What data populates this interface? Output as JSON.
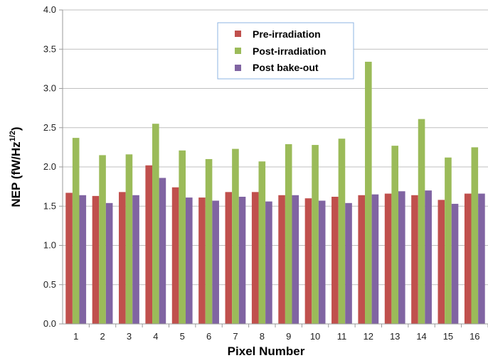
{
  "chart_data": {
    "type": "bar",
    "xlabel": "Pixel Number",
    "ylabel_main": "NEP (fW/Hz",
    "ylabel_sup": "1/2",
    "ylabel_end": ")",
    "ylim": [
      0,
      4.0
    ],
    "yticks": [
      "0.0",
      "0.5",
      "1.0",
      "1.5",
      "2.0",
      "2.5",
      "3.0",
      "3.5",
      "4.0"
    ],
    "categories": [
      "1",
      "2",
      "3",
      "4",
      "5",
      "6",
      "7",
      "8",
      "9",
      "10",
      "11",
      "12",
      "13",
      "14",
      "15",
      "16"
    ],
    "grid": "horizontal",
    "legend_position": "top-center",
    "series": [
      {
        "name": "Pre-irradiation",
        "color": "#C0504D",
        "values": [
          1.67,
          1.63,
          1.68,
          2.02,
          1.74,
          1.61,
          1.68,
          1.68,
          1.64,
          1.6,
          1.62,
          1.64,
          1.66,
          1.64,
          1.58,
          1.66
        ]
      },
      {
        "name": "Post-irradiation",
        "color": "#9BBB59",
        "values": [
          2.37,
          2.15,
          2.16,
          2.55,
          2.21,
          2.1,
          2.23,
          2.07,
          2.29,
          2.28,
          2.36,
          3.34,
          2.27,
          2.61,
          2.12,
          2.25
        ]
      },
      {
        "name": "Post bake-out",
        "color": "#8064A2",
        "values": [
          1.64,
          1.54,
          1.64,
          1.86,
          1.61,
          1.57,
          1.62,
          1.56,
          1.64,
          1.57,
          1.54,
          1.65,
          1.69,
          1.7,
          1.53,
          1.66
        ]
      }
    ]
  }
}
